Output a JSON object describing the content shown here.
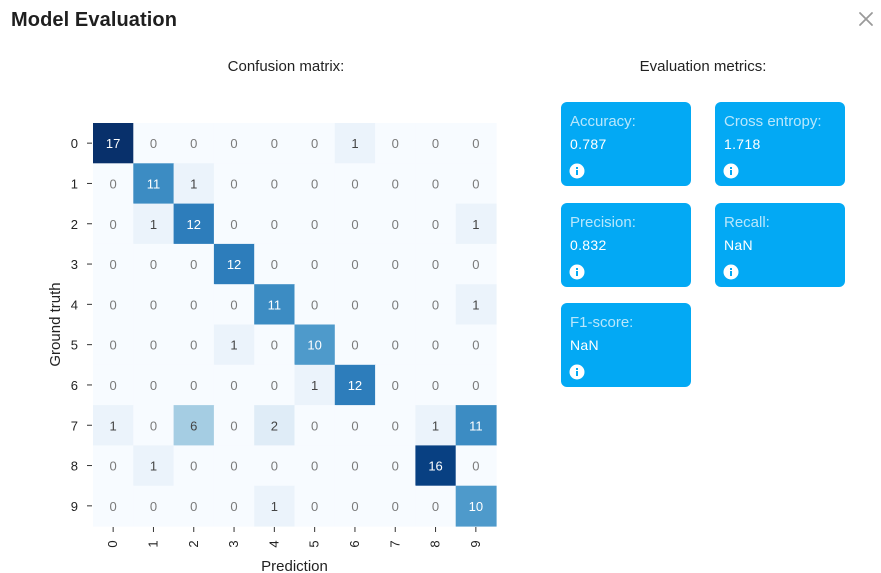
{
  "dialog": {
    "title": "Model Evaluation",
    "close_icon": "close-icon"
  },
  "confusion_matrix_heading": "Confusion matrix:",
  "metrics_heading": "Evaluation metrics:",
  "metrics": [
    {
      "label": "Accuracy:",
      "value": "0.787",
      "icon": "info-icon"
    },
    {
      "label": "Cross entropy:",
      "value": "1.718",
      "icon": "info-icon"
    },
    {
      "label": "Precision:",
      "value": "0.832",
      "icon": "info-icon"
    },
    {
      "label": "Recall:",
      "value": "NaN",
      "icon": "info-icon"
    },
    {
      "label": "F1-score:",
      "value": "NaN",
      "icon": "info-icon"
    }
  ],
  "colors": {
    "card": "#03a9f4",
    "heat_low": "#f7fbff",
    "heat_high": "#08306b"
  },
  "chart_data": {
    "type": "heatmap",
    "xlabel": "Prediction",
    "ylabel": "Ground truth",
    "x_labels": [
      "0",
      "1",
      "2",
      "3",
      "4",
      "5",
      "6",
      "7",
      "8",
      "9"
    ],
    "y_labels": [
      "0",
      "1",
      "2",
      "3",
      "4",
      "5",
      "6",
      "7",
      "8",
      "9"
    ],
    "colormap": "Blues",
    "vmax": 17,
    "values": [
      [
        17,
        0,
        0,
        0,
        0,
        0,
        1,
        0,
        0,
        0
      ],
      [
        0,
        11,
        1,
        0,
        0,
        0,
        0,
        0,
        0,
        0
      ],
      [
        0,
        1,
        12,
        0,
        0,
        0,
        0,
        0,
        0,
        1
      ],
      [
        0,
        0,
        0,
        12,
        0,
        0,
        0,
        0,
        0,
        0
      ],
      [
        0,
        0,
        0,
        0,
        11,
        0,
        0,
        0,
        0,
        1
      ],
      [
        0,
        0,
        0,
        1,
        0,
        10,
        0,
        0,
        0,
        0
      ],
      [
        0,
        0,
        0,
        0,
        0,
        1,
        12,
        0,
        0,
        0
      ],
      [
        1,
        0,
        6,
        0,
        2,
        0,
        0,
        0,
        1,
        11
      ],
      [
        0,
        1,
        0,
        0,
        0,
        0,
        0,
        0,
        16,
        0
      ],
      [
        0,
        0,
        0,
        0,
        1,
        0,
        0,
        0,
        0,
        10
      ]
    ]
  }
}
